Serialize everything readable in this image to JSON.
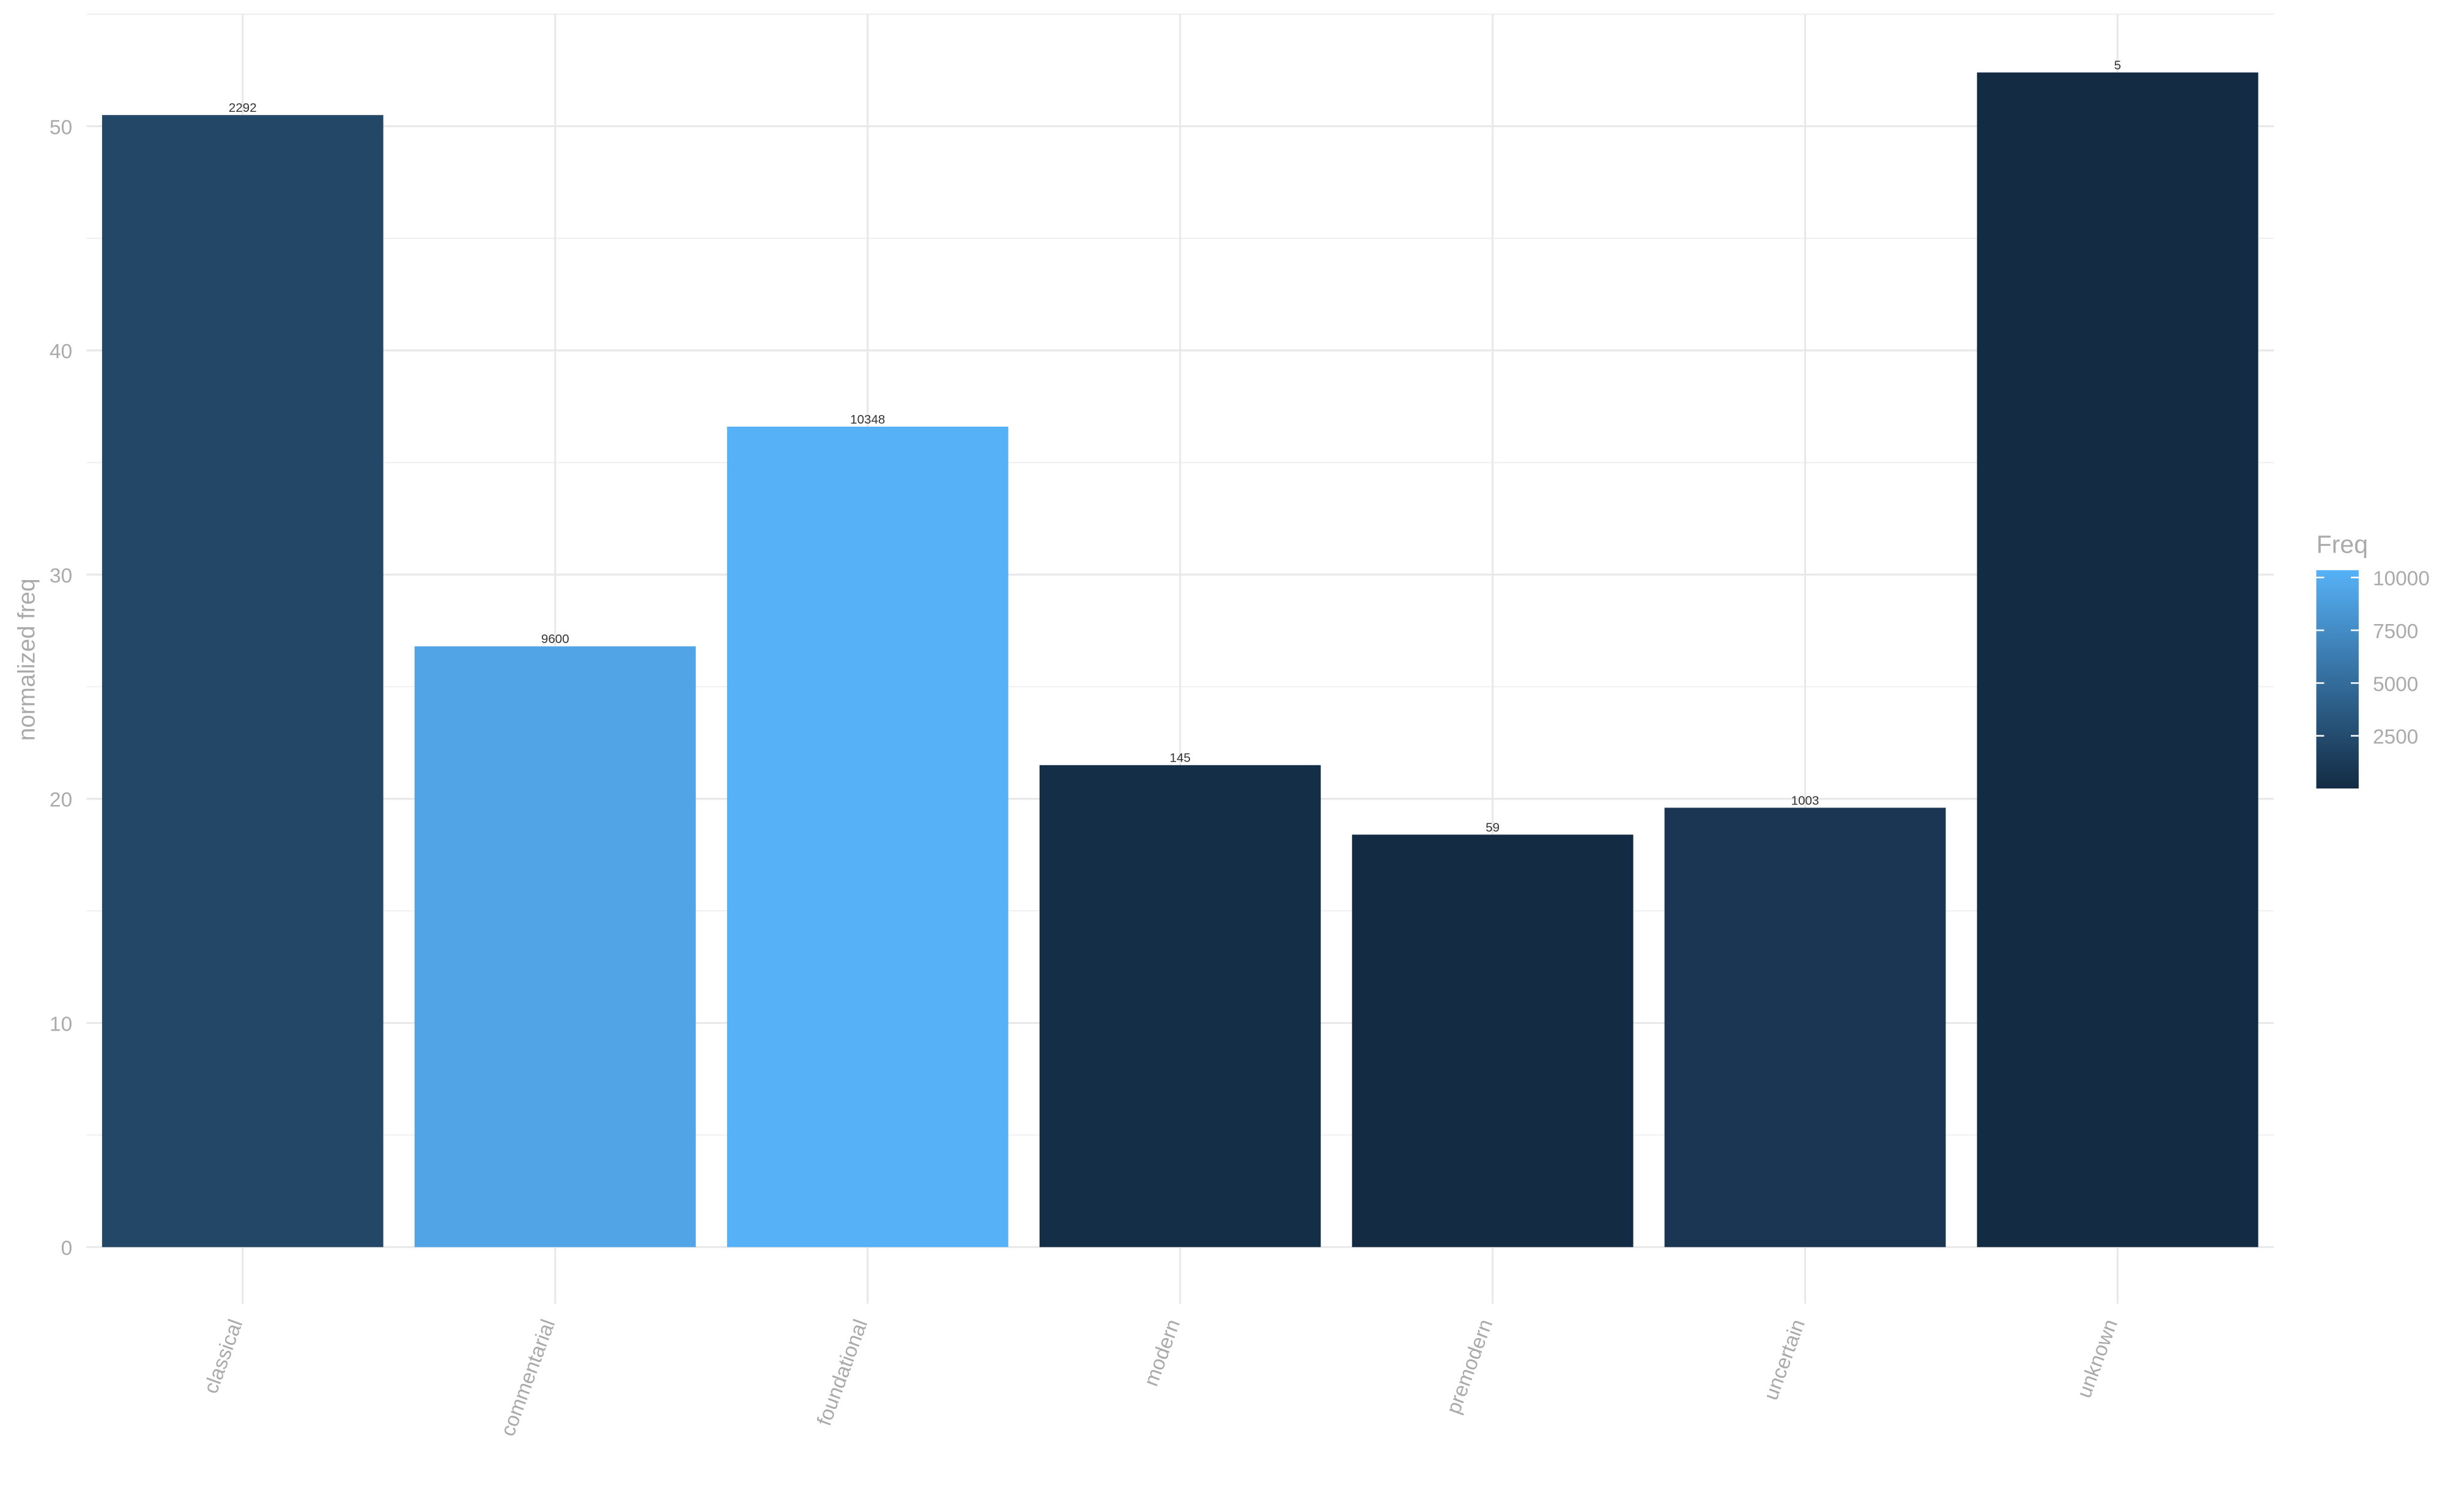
{
  "chart_data": {
    "type": "bar",
    "y_label": "normalized freq",
    "categories": [
      "classical",
      "commentarial",
      "foundational",
      "modern",
      "premodern",
      "uncertain",
      "unknown"
    ],
    "values": [
      50.5,
      26.8,
      36.6,
      21.5,
      18.4,
      19.6,
      52.4
    ],
    "value_labels": [
      "2292",
      "9600",
      "10348",
      "145",
      "59",
      "1003",
      "5"
    ],
    "colors": [
      "#234867",
      "#51A4E5",
      "#56B1F7",
      "#142E47",
      "#132C44",
      "#1B3653",
      "#132B43"
    ],
    "ylim": [
      0,
      55
    ],
    "yticks": [
      0,
      10,
      20,
      30,
      40,
      50
    ],
    "grid": true,
    "legend": {
      "title": "Freq",
      "position": "right",
      "colors": [
        "#132B43",
        "#56B1F7"
      ],
      "lim": [
        5,
        10348
      ],
      "ticks": [
        2500,
        5000,
        7500,
        10000
      ]
    }
  }
}
